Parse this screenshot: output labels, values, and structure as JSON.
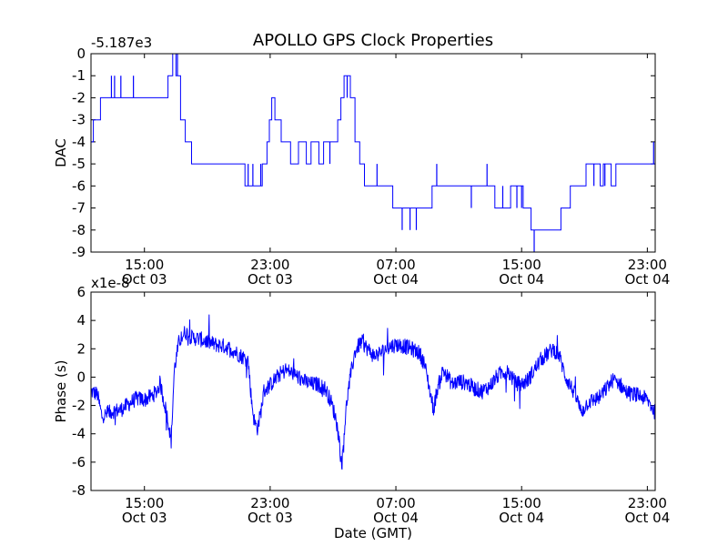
{
  "title": "APOLLO GPS Clock Properties",
  "xlabel": "Date (GMT)",
  "x_ticks": [
    {
      "time": "15:00",
      "date": "Oct 03",
      "hours": 15
    },
    {
      "time": "23:00",
      "date": "Oct 03",
      "hours": 23
    },
    {
      "time": "07:00",
      "date": "Oct 04",
      "hours": 31
    },
    {
      "time": "15:00",
      "date": "Oct 04",
      "hours": 39
    },
    {
      "time": "23:00",
      "date": "Oct 04",
      "hours": 47
    }
  ],
  "chart_data": [
    {
      "type": "line",
      "name": "dac",
      "title": "APOLLO GPS Clock Properties",
      "ylabel": "DAC",
      "offset_label": "-5.187e3",
      "xlim_hours": [
        11.6,
        47.5
      ],
      "ylim": [
        -9,
        0
      ],
      "yticks": [
        "0",
        "-1",
        "-2",
        "-3",
        "-4",
        "-5",
        "-6",
        "-7",
        "-8",
        "-9"
      ],
      "color": "#0000ff",
      "steps": [
        [
          11.6,
          -4
        ],
        [
          11.75,
          -3
        ],
        [
          12.0,
          -3
        ],
        [
          12.2,
          -2
        ],
        [
          13.4,
          -2
        ],
        [
          14.0,
          -2
        ],
        [
          16.2,
          -2
        ],
        [
          16.5,
          -1
        ],
        [
          16.8,
          0
        ],
        [
          17.0,
          -1
        ],
        [
          17.3,
          -3
        ],
        [
          17.6,
          -4
        ],
        [
          18.0,
          -5
        ],
        [
          21.0,
          -5
        ],
        [
          21.4,
          -6
        ],
        [
          22.3,
          -6
        ],
        [
          22.5,
          -5
        ],
        [
          22.8,
          -4
        ],
        [
          22.95,
          -3
        ],
        [
          23.1,
          -2
        ],
        [
          23.3,
          -3
        ],
        [
          23.7,
          -4
        ],
        [
          24.3,
          -5
        ],
        [
          24.8,
          -4
        ],
        [
          25.3,
          -5
        ],
        [
          25.6,
          -4
        ],
        [
          26.1,
          -5
        ],
        [
          26.4,
          -4
        ],
        [
          27.3,
          -3
        ],
        [
          27.5,
          -2
        ],
        [
          27.7,
          -1
        ],
        [
          28.1,
          -2
        ],
        [
          28.4,
          -4
        ],
        [
          28.7,
          -5
        ],
        [
          29.0,
          -6
        ],
        [
          29.4,
          -6
        ],
        [
          30.2,
          -6
        ],
        [
          30.8,
          -7
        ],
        [
          33.0,
          -7
        ],
        [
          33.3,
          -6
        ],
        [
          33.5,
          -6
        ],
        [
          35.0,
          -6
        ],
        [
          35.3,
          -6
        ],
        [
          35.5,
          -6
        ],
        [
          36.7,
          -6
        ],
        [
          37.0,
          -6
        ],
        [
          37.3,
          -7
        ],
        [
          38.1,
          -7
        ],
        [
          38.3,
          -6
        ],
        [
          38.6,
          -6
        ],
        [
          39.1,
          -7
        ],
        [
          39.6,
          -8
        ],
        [
          41.0,
          -8
        ],
        [
          41.5,
          -7
        ],
        [
          42.1,
          -6
        ],
        [
          42.7,
          -6
        ],
        [
          43.1,
          -5
        ],
        [
          44.0,
          -6
        ],
        [
          44.2,
          -5
        ],
        [
          44.7,
          -6
        ],
        [
          45.0,
          -5
        ],
        [
          46.5,
          -5
        ],
        [
          47.5,
          -4
        ]
      ],
      "spikes": [
        [
          12.9,
          -2,
          -1
        ],
        [
          13.1,
          -2,
          -1
        ],
        [
          13.5,
          -2,
          -1
        ],
        [
          14.3,
          -2,
          -1
        ],
        [
          17.1,
          -1,
          0
        ],
        [
          21.6,
          -6,
          -5
        ],
        [
          21.9,
          -6,
          -5
        ],
        [
          22.4,
          -6,
          -5
        ],
        [
          26.8,
          -5,
          -4
        ],
        [
          27.9,
          -2,
          -1
        ],
        [
          29.8,
          -6,
          -5
        ],
        [
          31.4,
          -8,
          -7
        ],
        [
          31.9,
          -8,
          -7
        ],
        [
          32.3,
          -7,
          -8
        ],
        [
          33.6,
          -6,
          -5
        ],
        [
          35.8,
          -7,
          -6
        ],
        [
          36.8,
          -6,
          -5
        ],
        [
          37.8,
          -7,
          -6
        ],
        [
          38.7,
          -7,
          -6
        ],
        [
          39.0,
          -7,
          -6
        ],
        [
          39.8,
          -8,
          -9
        ],
        [
          43.6,
          -6,
          -5
        ],
        [
          44.3,
          -6,
          -5
        ],
        [
          47.4,
          -5,
          -4
        ]
      ]
    },
    {
      "type": "line",
      "name": "phase",
      "ylabel": "Phase (s)",
      "offset_label": "x1e-8",
      "xlim_hours": [
        11.6,
        47.5
      ],
      "ylim": [
        -8,
        6
      ],
      "yticks": [
        "6",
        "4",
        "2",
        "0",
        "-2",
        "-4",
        "-6",
        "-8"
      ],
      "color": "#0000ff",
      "envelope": [
        [
          11.6,
          -1.0
        ],
        [
          12.0,
          -1.2
        ],
        [
          12.3,
          -2.8
        ],
        [
          12.6,
          -2.6
        ],
        [
          13.0,
          -2.4
        ],
        [
          13.5,
          -2.3
        ],
        [
          14.0,
          -1.9
        ],
        [
          14.5,
          -1.5
        ],
        [
          15.0,
          -1.6
        ],
        [
          15.5,
          -1.3
        ],
        [
          15.8,
          -1.0
        ],
        [
          16.0,
          -0.4
        ],
        [
          16.2,
          -1.5
        ],
        [
          16.5,
          -3.0
        ],
        [
          16.7,
          -4.6
        ],
        [
          16.9,
          0.5
        ],
        [
          17.2,
          2.5
        ],
        [
          17.6,
          3.2
        ],
        [
          18.0,
          2.8
        ],
        [
          18.5,
          2.7
        ],
        [
          19.0,
          2.5
        ],
        [
          19.5,
          2.3
        ],
        [
          20.0,
          2.2
        ],
        [
          20.5,
          2.0
        ],
        [
          21.0,
          1.6
        ],
        [
          21.6,
          1.2
        ],
        [
          21.8,
          -1.5
        ],
        [
          22.0,
          -3.2
        ],
        [
          22.2,
          -3.6
        ],
        [
          22.4,
          -2.5
        ],
        [
          22.6,
          -1.0
        ],
        [
          23.2,
          -0.3
        ],
        [
          23.6,
          0.2
        ],
        [
          24.0,
          0.5
        ],
        [
          24.4,
          0.3
        ],
        [
          24.8,
          0.0
        ],
        [
          25.2,
          -0.3
        ],
        [
          25.6,
          -0.5
        ],
        [
          26.0,
          -0.5
        ],
        [
          26.5,
          -0.8
        ],
        [
          26.9,
          -1.8
        ],
        [
          27.2,
          -3.0
        ],
        [
          27.4,
          -4.5
        ],
        [
          27.55,
          -6.4
        ],
        [
          27.7,
          -4.0
        ],
        [
          27.9,
          -1.5
        ],
        [
          28.1,
          0.0
        ],
        [
          28.4,
          1.8
        ],
        [
          28.8,
          2.5
        ],
        [
          29.2,
          2.0
        ],
        [
          29.6,
          1.5
        ],
        [
          30.0,
          1.7
        ],
        [
          30.5,
          2.1
        ],
        [
          31.0,
          2.3
        ],
        [
          31.5,
          2.2
        ],
        [
          32.0,
          2.0
        ],
        [
          32.5,
          1.7
        ],
        [
          32.8,
          1.0
        ],
        [
          33.0,
          0.0
        ],
        [
          33.2,
          -1.2
        ],
        [
          33.4,
          -2.3
        ],
        [
          33.6,
          -1.0
        ],
        [
          34.0,
          0.5
        ],
        [
          34.3,
          0.0
        ],
        [
          34.6,
          -0.5
        ],
        [
          35.0,
          -0.3
        ],
        [
          35.5,
          -0.4
        ],
        [
          36.0,
          -0.8
        ],
        [
          36.5,
          -1.0
        ],
        [
          37.0,
          -0.6
        ],
        [
          37.4,
          0.0
        ],
        [
          37.8,
          0.4
        ],
        [
          38.2,
          0.3
        ],
        [
          38.6,
          -0.4
        ],
        [
          39.0,
          -0.5
        ],
        [
          39.4,
          -0.2
        ],
        [
          39.8,
          0.5
        ],
        [
          40.2,
          1.2
        ],
        [
          40.6,
          1.6
        ],
        [
          41.0,
          2.0
        ],
        [
          41.4,
          1.5
        ],
        [
          41.8,
          0.0
        ],
        [
          42.2,
          -0.8
        ],
        [
          42.5,
          -1.5
        ],
        [
          42.8,
          -2.5
        ],
        [
          43.2,
          -1.8
        ],
        [
          43.6,
          -1.6
        ],
        [
          44.0,
          -1.4
        ],
        [
          44.4,
          -0.8
        ],
        [
          44.8,
          -0.2
        ],
        [
          45.2,
          -0.4
        ],
        [
          45.6,
          -1.0
        ],
        [
          46.0,
          -1.2
        ],
        [
          46.5,
          -1.3
        ],
        [
          47.0,
          -1.6
        ],
        [
          47.5,
          -2.5
        ]
      ]
    }
  ]
}
